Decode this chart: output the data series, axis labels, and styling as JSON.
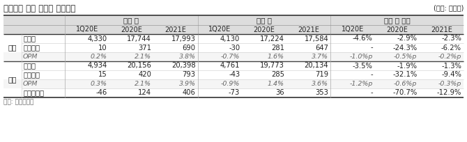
{
  "title": "현대제철 실적 추정치 변경내역",
  "unit": "(단위: 십억원)",
  "source": "자료: 유안타증권",
  "header_groups": [
    "변경 전",
    "변경 후",
    "변경 전 대비"
  ],
  "sub_headers": [
    "1Q20E",
    "2020E",
    "2021E",
    "1Q20E",
    "2020E",
    "2021E",
    "1Q20E",
    "2020E",
    "2021E"
  ],
  "sections": [
    {
      "section_label": "별도",
      "rows": [
        {
          "label": "매출액",
          "values": [
            "4,330",
            "17,744",
            "17,993",
            "4,130",
            "17,224",
            "17,584",
            "-4.6%",
            "-2.9%",
            "-2.3%"
          ],
          "italic": false
        },
        {
          "label": "영업이익",
          "values": [
            "10",
            "371",
            "690",
            "-30",
            "281",
            "647",
            "-",
            "-24.3%",
            "-6.2%"
          ],
          "italic": false
        },
        {
          "label": "OPM",
          "values": [
            "0.2%",
            "2.1%",
            "3.8%",
            "-0.7%",
            "1.6%",
            "3.7%",
            "-1.0%p",
            "-0.5%p",
            "-0.2%p"
          ],
          "italic": true
        }
      ]
    },
    {
      "section_label": "연결",
      "rows": [
        {
          "label": "매출액",
          "values": [
            "4,934",
            "20,156",
            "20,398",
            "4,761",
            "19,773",
            "20,134",
            "-3.5%",
            "-1.9%",
            "-1.3%"
          ],
          "italic": false
        },
        {
          "label": "영업이익",
          "values": [
            "15",
            "420",
            "793",
            "-43",
            "285",
            "719",
            "-",
            "-32.1%",
            "-9.4%"
          ],
          "italic": false
        },
        {
          "label": "OPM",
          "values": [
            "0.3%",
            "2.1%",
            "3.9%",
            "-0.9%",
            "1.4%",
            "3.6%",
            "-1.2%p",
            "-0.6%p",
            "-0.3%p"
          ],
          "italic": true
        },
        {
          "label": "지배순이익",
          "values": [
            "-46",
            "124",
            "406",
            "-73",
            "36",
            "353",
            "-",
            "-70.7%",
            "-12.9%"
          ],
          "italic": false
        }
      ]
    }
  ],
  "bg_color": "#ffffff",
  "text_color": "#222222",
  "gray_text": "#666666",
  "header_bg": "#dddddd",
  "opm_bg": "#f5f5f5"
}
